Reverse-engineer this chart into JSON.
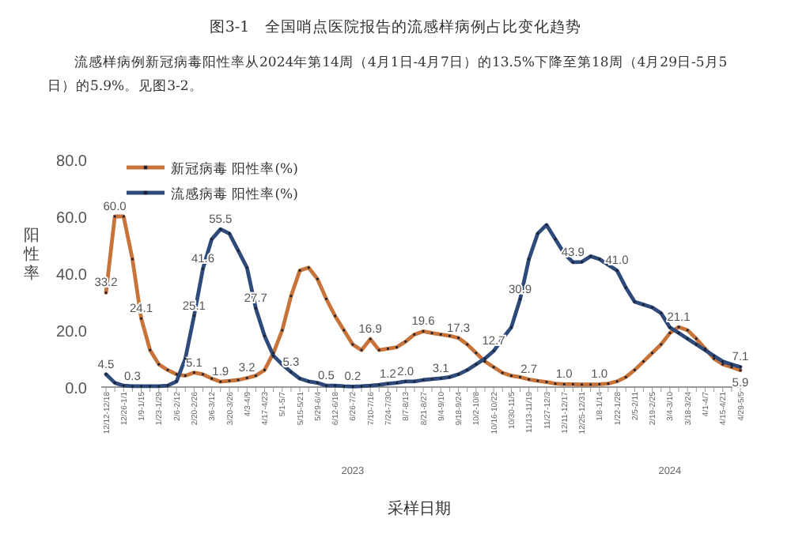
{
  "chart_data": {
    "type": "line",
    "title": "图3-1　全国哨点医院报告的流感样病例占比变化趋势",
    "subtitle": "流感样病例新冠病毒阳性率从2024年第14周（4月1日-4月7日）的13.5%下降至第18周（4月29日-5月5日）的5.9%。见图3-2。",
    "xlabel": "采样日期",
    "ylabel": "阳性率",
    "categories": [
      "12/12-12/18",
      null,
      "12/26-1/1",
      null,
      "1/9-1/15",
      null,
      "1/23-1/29",
      null,
      "2/6-2/12",
      null,
      "2/20-2/26",
      null,
      "3/6-3/12",
      null,
      "3/20-3/26",
      null,
      "4/3-4/9",
      null,
      "4/17-4/23",
      null,
      "5/1-5/7",
      null,
      "5/15-5/21",
      null,
      "5/29-6/4",
      null,
      "6/12-6/18",
      null,
      "6/26-7/2",
      null,
      "7/10-7/16",
      null,
      "7/24-7/30",
      null,
      "8/7-8/13",
      null,
      "8/21-8/27",
      null,
      "9/4-9/10",
      null,
      "9/18-9/24",
      null,
      "10/2-10/8",
      null,
      "10/16-10/22",
      null,
      "10/30-11/5",
      null,
      "11/13-11/19",
      null,
      "11/27-12/3",
      null,
      "12/11-12/17",
      null,
      "12/25-12/31",
      null,
      "1/8-1/14",
      null,
      "1/22-1/28",
      null,
      "2/5-2/11",
      null,
      "2/19-2/25",
      null,
      "3/4-3/10",
      null,
      "3/18-3/24",
      null,
      "4/1-4/7",
      null,
      "4/15-4/21",
      null,
      "4/29-5/5"
    ],
    "series": [
      {
        "name": "新冠病毒 阳性率(%)",
        "color": "#c8733a",
        "values": [
          33.2,
          60.0,
          60,
          45,
          24.1,
          13,
          8,
          6,
          4.5,
          4,
          5.1,
          4.5,
          3,
          1.9,
          2.2,
          2.5,
          3.2,
          4,
          6,
          12,
          20,
          32,
          41,
          42,
          38,
          31,
          25,
          20,
          15,
          13,
          16.9,
          13,
          13.5,
          14,
          16,
          18.5,
          19.6,
          19,
          18.5,
          18,
          17.3,
          15,
          12,
          9,
          7,
          5,
          4,
          3.5,
          2.7,
          2.2,
          1.8,
          1.2,
          1.0,
          1.0,
          0.9,
          0.9,
          1.0,
          1.2,
          2,
          3.5,
          6,
          9,
          12,
          15,
          19,
          21.1,
          20,
          17,
          13.5,
          10,
          8,
          7,
          5.9
        ],
        "value_labels": [
          "33.2",
          "60.0",
          null,
          null,
          "24.1",
          null,
          null,
          null,
          null,
          null,
          "5.1",
          null,
          null,
          "1.9",
          null,
          null,
          "3.2",
          null,
          null,
          null,
          null,
          null,
          null,
          null,
          null,
          null,
          null,
          null,
          null,
          null,
          "16.9",
          null,
          null,
          null,
          null,
          null,
          "19.6",
          null,
          null,
          null,
          "17.3",
          null,
          null,
          null,
          null,
          null,
          null,
          null,
          "2.7",
          null,
          null,
          null,
          "1.0",
          null,
          null,
          null,
          "1.0",
          null,
          null,
          null,
          null,
          null,
          null,
          null,
          null,
          "21.1",
          null,
          null,
          null,
          null,
          null,
          null,
          "5.9"
        ]
      },
      {
        "name": "流感病毒 阳性率(%)",
        "color": "#2e4a7a",
        "values": [
          4.5,
          1.5,
          0.5,
          0.3,
          0.3,
          0.3,
          0.3,
          0.5,
          2,
          10,
          25.1,
          41.6,
          52,
          55.5,
          54,
          48,
          42,
          27.7,
          18,
          11,
          8,
          5.3,
          3,
          2,
          1.5,
          0.5,
          0.5,
          0.3,
          0.2,
          0.3,
          0.5,
          0.8,
          1.2,
          1.5,
          2.0,
          2.0,
          2.5,
          2.8,
          3.1,
          3.5,
          4.5,
          6,
          8,
          10,
          12.7,
          17,
          21,
          30.9,
          45,
          54,
          57,
          52,
          47,
          43.9,
          44,
          46,
          45,
          43,
          41.0,
          35,
          30,
          29,
          28,
          26,
          21,
          19,
          17,
          15,
          13,
          11,
          9,
          8,
          7.1
        ],
        "value_labels": [
          "4.5",
          null,
          null,
          "0.3",
          null,
          null,
          null,
          null,
          null,
          null,
          "25.1",
          "41.6",
          null,
          "55.5",
          null,
          null,
          null,
          "27.7",
          null,
          null,
          null,
          "5.3",
          null,
          null,
          null,
          "0.5",
          null,
          null,
          "0.2",
          null,
          null,
          null,
          "1.2",
          null,
          "2.0",
          null,
          null,
          null,
          "3.1",
          null,
          null,
          null,
          null,
          null,
          "12.7",
          null,
          null,
          "30.9",
          null,
          null,
          null,
          null,
          null,
          "43.9",
          null,
          null,
          null,
          null,
          "41.0",
          null,
          null,
          null,
          null,
          null,
          null,
          null,
          null,
          null,
          null,
          null,
          null,
          null,
          "7.1"
        ]
      }
    ],
    "ylim": [
      0,
      80
    ],
    "yticks": [
      {
        "value": 0,
        "label": "0.0"
      },
      {
        "value": 20,
        "label": "20.0"
      },
      {
        "value": 40,
        "label": "40.0"
      },
      {
        "value": 60,
        "label": "60.0"
      },
      {
        "value": 80,
        "label": "80.0"
      }
    ],
    "annotations": [
      "2023",
      "2024"
    ],
    "legend": "top left",
    "marker": "square",
    "line_style": "solid",
    "grid": false
  }
}
